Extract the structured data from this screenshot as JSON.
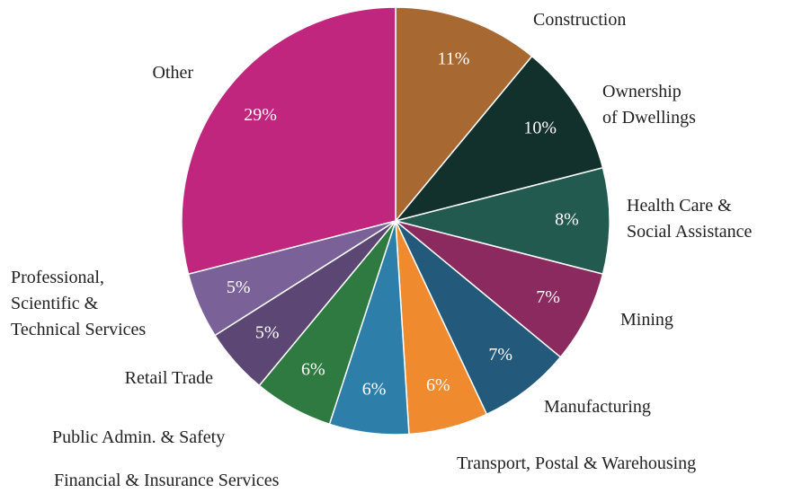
{
  "chart_data": {
    "type": "pie",
    "categories": [
      "Construction",
      "Ownership\nof Dwellings",
      "Health Care &\nSocial Assistance",
      "Mining",
      "Manufacturing",
      "Transport, Postal & Warehousing",
      "Financial & Insurance Services",
      "Public Admin. & Safety",
      "Retail Trade",
      "Professional,\nScientific &\nTechnical Services",
      "Other"
    ],
    "values": [
      11,
      10,
      8,
      7,
      7,
      6,
      6,
      6,
      5,
      5,
      29
    ],
    "value_labels": [
      "11%",
      "10%",
      "8%",
      "7%",
      "7%",
      "6%",
      "6%",
      "6%",
      "5%",
      "5%",
      "29%"
    ],
    "colors": [
      "#a86832",
      "#12302c",
      "#235a50",
      "#8b2a5e",
      "#235a7c",
      "#ef8a2f",
      "#2d7ea8",
      "#2f7a40",
      "#5b4674",
      "#7a6299",
      "#c0267e"
    ]
  }
}
